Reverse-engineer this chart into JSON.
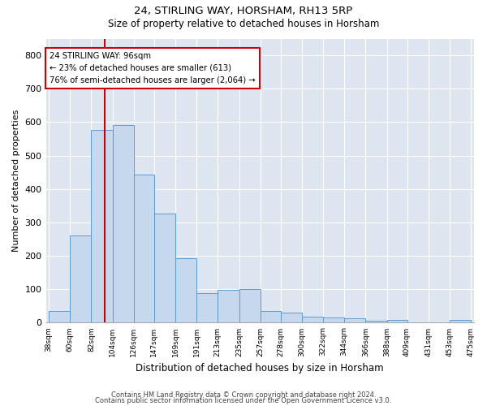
{
  "title1": "24, STIRLING WAY, HORSHAM, RH13 5RP",
  "title2": "Size of property relative to detached houses in Horsham",
  "xlabel": "Distribution of detached houses by size in Horsham",
  "ylabel": "Number of detached properties",
  "bar_edges": [
    38,
    60,
    82,
    104,
    126,
    147,
    169,
    191,
    213,
    235,
    257,
    278,
    300,
    322,
    344,
    366,
    388,
    409,
    431,
    453,
    475
  ],
  "bar_heights": [
    35,
    262,
    577,
    592,
    443,
    327,
    192,
    89,
    99,
    100,
    35,
    31,
    17,
    16,
    12,
    5,
    8,
    0,
    0,
    8
  ],
  "bar_color": "#c5d8ed",
  "bar_edge_color": "#5b9bd5",
  "property_size": 96,
  "vline_color": "#cc0000",
  "annotation_text": "24 STIRLING WAY: 96sqm\n← 23% of detached houses are smaller (613)\n76% of semi-detached houses are larger (2,064) →",
  "annotation_box_color": "#cc0000",
  "ylim": [
    0,
    850
  ],
  "yticks": [
    0,
    100,
    200,
    300,
    400,
    500,
    600,
    700,
    800
  ],
  "background_color": "#dde5f0",
  "grid_color": "#ffffff",
  "footer1": "Contains HM Land Registry data © Crown copyright and database right 2024.",
  "footer2": "Contains public sector information licensed under the Open Government Licence v3.0."
}
